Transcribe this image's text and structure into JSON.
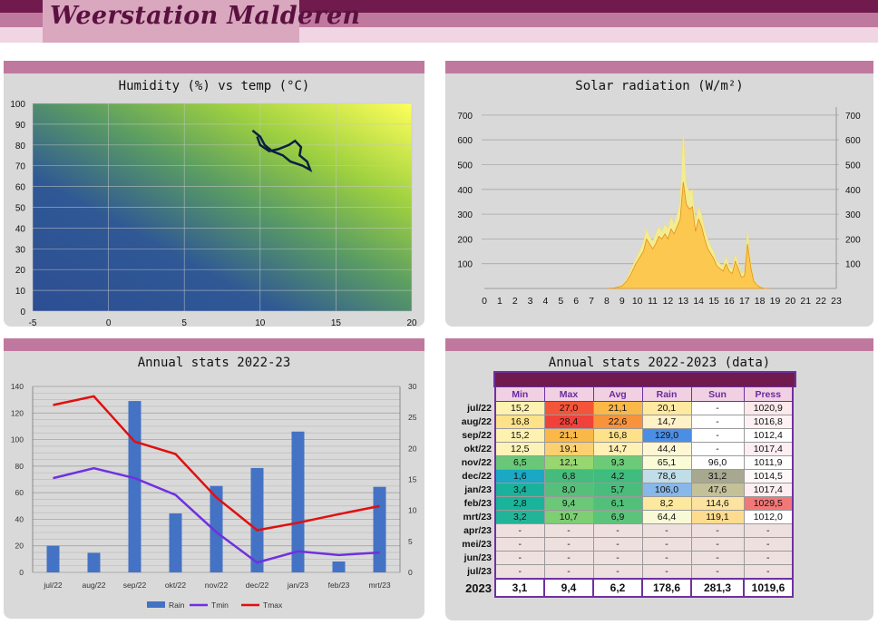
{
  "site": {
    "title": "Weerstation Malderen"
  },
  "panels": {
    "humidity": {
      "title": "Humidity (%) vs temp (°C)",
      "x_ticks": [
        "-5",
        "0",
        "5",
        "10",
        "15",
        "20"
      ],
      "y_ticks": [
        "0",
        "10",
        "20",
        "30",
        "40",
        "50",
        "60",
        "70",
        "80",
        "90",
        "100"
      ]
    },
    "solar": {
      "title": "Solar radiation (W/m²)",
      "y_ticks": [
        "100",
        "200",
        "300",
        "400",
        "500",
        "600",
        "700"
      ],
      "x_ticks": [
        "0",
        "1",
        "2",
        "3",
        "4",
        "5",
        "6",
        "7",
        "8",
        "9",
        "10",
        "11",
        "12",
        "13",
        "14",
        "15",
        "16",
        "17",
        "18",
        "19",
        "20",
        "21",
        "22",
        "23"
      ]
    },
    "annual_chart": {
      "title": "Annual stats 2022-23",
      "y_left": [
        "0",
        "20",
        "40",
        "60",
        "80",
        "100",
        "120",
        "140"
      ],
      "y_right": [
        "0",
        "5",
        "10",
        "15",
        "20",
        "25",
        "30"
      ],
      "legend": [
        "Rain",
        "Tmin",
        "Tmax"
      ],
      "colors": {
        "rain": "#4472c4",
        "tmin": "#7030e0",
        "tmax": "#e01010"
      }
    },
    "annual_table": {
      "title": "Annual stats 2022-2023 (data)",
      "headers": [
        "Min",
        "Max",
        "Avg",
        "Rain",
        "Sun",
        "Press"
      ],
      "rows": [
        {
          "label": "jul/22",
          "cells": [
            "15,2",
            "27,0",
            "21,1",
            "20,1",
            "-",
            "1020,9"
          ],
          "colors": [
            "#fff2b0",
            "#f4553a",
            "#fbb848",
            "#ffe9a0",
            "#ffffff",
            "#fde8ec"
          ]
        },
        {
          "label": "aug/22",
          "cells": [
            "16,8",
            "28,4",
            "22,6",
            "14,7",
            "-",
            "1016,8"
          ],
          "colors": [
            "#fee28a",
            "#f0423a",
            "#f8933c",
            "#fff1c8",
            "#ffffff",
            "#fdf1f3"
          ]
        },
        {
          "label": "sep/22",
          "cells": [
            "15,2",
            "21,1",
            "16,8",
            "129,0",
            "-",
            "1012,4"
          ],
          "colors": [
            "#fff2b0",
            "#fbb848",
            "#fee28a",
            "#4a8ee6",
            "#ffffff",
            "#ffffff"
          ]
        },
        {
          "label": "okt/22",
          "cells": [
            "12,5",
            "19,1",
            "14,7",
            "44,4",
            "-",
            "1017,4"
          ],
          "colors": [
            "#fdf3b8",
            "#fcd070",
            "#fff0b4",
            "#fff7d4",
            "#ffffff",
            "#fdeef1"
          ]
        },
        {
          "label": "nov/22",
          "cells": [
            "6,5",
            "12,1",
            "9,3",
            "65,1",
            "96,0",
            "1011,9"
          ],
          "colors": [
            "#68c878",
            "#98d670",
            "#6ccb78",
            "#fafcd8",
            "#ffffff",
            "#ffffff"
          ]
        },
        {
          "label": "dec/22",
          "cells": [
            "1,6",
            "6,8",
            "4,2",
            "78,6",
            "31,2",
            "1014,5"
          ],
          "colors": [
            "#1aa8c4",
            "#46bc7c",
            "#40bc7e",
            "#c0dde8",
            "#a8a890",
            "#fff8f8"
          ]
        },
        {
          "label": "jan/23",
          "cells": [
            "3,4",
            "8,0",
            "5,7",
            "106,0",
            "47,6",
            "1017,4"
          ],
          "colors": [
            "#1ab29c",
            "#56c07a",
            "#4abc7c",
            "#88b8ea",
            "#c4c098",
            "#fdeef1"
          ]
        },
        {
          "label": "feb/23",
          "cells": [
            "2,8",
            "9,4",
            "6,1",
            "8,2",
            "114,6",
            "1029,5"
          ],
          "colors": [
            "#1ab49a",
            "#6ac878",
            "#52c07a",
            "#fde8a0",
            "#fde3a0",
            "#f27878"
          ]
        },
        {
          "label": "mrt/23",
          "cells": [
            "3,2",
            "10,7",
            "6,9",
            "64,4",
            "119,1",
            "1012,0"
          ],
          "colors": [
            "#22b498",
            "#7ece74",
            "#5cc47a",
            "#f8f9d6",
            "#fddc90",
            "#ffffff"
          ]
        },
        {
          "label": "apr/23",
          "cells": [
            "-",
            "-",
            "-",
            "-",
            "-",
            "-"
          ],
          "colors": [
            "#efe0e0",
            "#efe0e0",
            "#efe0e0",
            "#efe0e0",
            "#efe0e0",
            "#efe0e0"
          ]
        },
        {
          "label": "mei/23",
          "cells": [
            "-",
            "-",
            "-",
            "-",
            "-",
            "-"
          ],
          "colors": [
            "#efe0e0",
            "#efe0e0",
            "#efe0e0",
            "#efe0e0",
            "#efe0e0",
            "#efe0e0"
          ]
        },
        {
          "label": "jun/23",
          "cells": [
            "-",
            "-",
            "-",
            "-",
            "-",
            "-"
          ],
          "colors": [
            "#efe0e0",
            "#efe0e0",
            "#efe0e0",
            "#efe0e0",
            "#efe0e0",
            "#efe0e0"
          ]
        },
        {
          "label": "jul/23",
          "cells": [
            "-",
            "-",
            "-",
            "-",
            "-",
            "-"
          ],
          "colors": [
            "#efe0e0",
            "#efe0e0",
            "#efe0e0",
            "#efe0e0",
            "#efe0e0",
            "#efe0e0"
          ]
        }
      ],
      "total": {
        "label": "2023",
        "cells": [
          "3,1",
          "9,4",
          "6,2",
          "178,6",
          "281,3",
          "1019,6"
        ]
      }
    }
  },
  "chart_data": [
    {
      "type": "heatmap",
      "title": "Humidity (%) vs temp (°C)",
      "xlim": [
        -5,
        20
      ],
      "ylim": [
        0,
        100
      ],
      "trace": {
        "x": [
          9.5,
          10.0,
          10.3,
          10.8,
          11.5,
          12.0,
          12.8,
          13.3,
          13.1,
          12.6,
          12.7,
          12.3,
          11.9,
          11.2,
          10.6,
          10.0,
          9.8
        ],
        "y": [
          87,
          84,
          80,
          77,
          75,
          72,
          70,
          68,
          72,
          75,
          79,
          82,
          80,
          78,
          77,
          80,
          84
        ]
      }
    },
    {
      "type": "area",
      "title": "Solar radiation (W/m²)",
      "x": [
        8.0,
        8.5,
        9.0,
        9.3,
        9.6,
        9.9,
        10.2,
        10.4,
        10.6,
        10.8,
        11.0,
        11.2,
        11.4,
        11.6,
        11.8,
        12.0,
        12.2,
        12.4,
        12.6,
        12.8,
        13.0,
        13.2,
        13.4,
        13.6,
        13.8,
        14.0,
        14.2,
        14.4,
        14.6,
        14.8,
        15.0,
        15.2,
        15.4,
        15.6,
        15.8,
        16.0,
        16.2,
        16.4,
        16.6,
        16.8,
        17.0,
        17.2,
        17.4,
        17.6,
        17.8,
        18.0,
        18.3,
        18.6
      ],
      "series": [
        {
          "values": [
            0,
            2,
            15,
            40,
            80,
            120,
            160,
            190,
            240,
            210,
            190,
            220,
            250,
            230,
            260,
            240,
            290,
            260,
            300,
            350,
            640,
            420,
            390,
            400,
            270,
            330,
            300,
            240,
            200,
            170,
            150,
            110,
            100,
            90,
            130,
            90,
            80,
            140,
            100,
            60,
            70,
            240,
            110,
            40,
            20,
            10,
            0,
            0
          ]
        },
        {
          "values": [
            0,
            2,
            10,
            30,
            60,
            100,
            130,
            150,
            200,
            180,
            160,
            180,
            210,
            200,
            220,
            200,
            240,
            220,
            250,
            280,
            430,
            340,
            320,
            330,
            230,
            280,
            250,
            200,
            160,
            140,
            120,
            90,
            80,
            70,
            100,
            70,
            60,
            110,
            80,
            45,
            50,
            180,
            90,
            30,
            15,
            5,
            0,
            0
          ]
        }
      ],
      "ylim": [
        0,
        750
      ],
      "xlim": [
        0,
        23
      ]
    },
    {
      "type": "bar",
      "title": "Annual stats 2022-23",
      "categories": [
        "jul/22",
        "aug/22",
        "sep/22",
        "okt/22",
        "nov/22",
        "dec/22",
        "jan/23",
        "feb/23",
        "mrt/23"
      ],
      "series": [
        {
          "name": "Rain",
          "values": [
            20.1,
            14.7,
            129.0,
            44.4,
            65.1,
            78.6,
            106.0,
            8.2,
            64.4
          ],
          "axis": "left"
        },
        {
          "name": "Tmin",
          "values": [
            15.2,
            16.8,
            15.2,
            12.5,
            6.5,
            1.6,
            3.4,
            2.8,
            3.2
          ],
          "axis": "right"
        },
        {
          "name": "Tmax",
          "values": [
            27.0,
            28.4,
            21.1,
            19.1,
            12.1,
            6.8,
            8.0,
            9.4,
            10.7
          ],
          "axis": "right"
        }
      ],
      "ylim_left": [
        0,
        140
      ],
      "ylim_right": [
        0,
        30
      ]
    }
  ]
}
